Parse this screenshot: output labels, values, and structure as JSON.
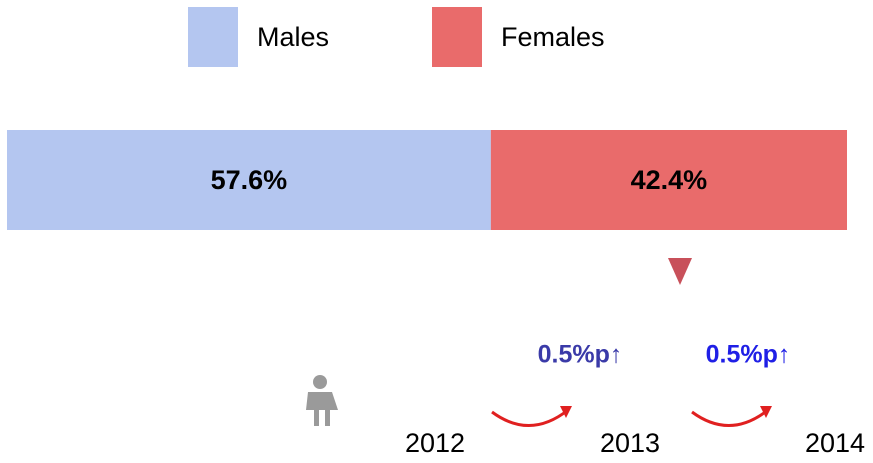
{
  "chart_data": {
    "type": "stacked_bar",
    "series": [
      {
        "name": "Males",
        "color": "#b4c6f0",
        "values": [
          57.6
        ],
        "value_labels": [
          "57.6%"
        ]
      },
      {
        "name": "Females",
        "color": "#e96b6b",
        "values": [
          42.4
        ],
        "value_labels": [
          "42.4%"
        ]
      }
    ],
    "xlim": [
      0,
      100
    ],
    "annotations": [
      {
        "text": "0.5%p↑",
        "color": "#3a3aa8"
      },
      {
        "text": "0.5%p↑",
        "color": "#1f1fe6"
      }
    ],
    "years": [
      "2012",
      "2013",
      "2014"
    ]
  }
}
